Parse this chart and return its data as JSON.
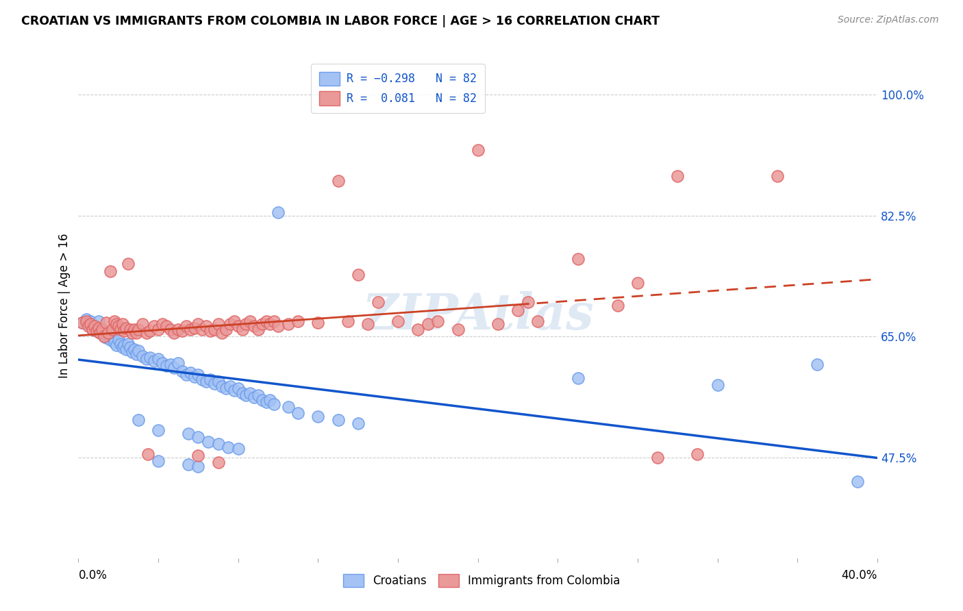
{
  "title": "CROATIAN VS IMMIGRANTS FROM COLOMBIA IN LABOR FORCE | AGE > 16 CORRELATION CHART",
  "source": "Source: ZipAtlas.com",
  "ylabel": "In Labor Force | Age > 16",
  "ytick_labels": [
    "47.5%",
    "65.0%",
    "82.5%",
    "100.0%"
  ],
  "ytick_values": [
    0.475,
    0.65,
    0.825,
    1.0
  ],
  "xmin": 0.0,
  "xmax": 0.4,
  "ymin": 0.33,
  "ymax": 1.06,
  "blue_color": "#a4c2f4",
  "pink_color": "#ea9999",
  "blue_edge_color": "#6d9eeb",
  "pink_edge_color": "#e06666",
  "blue_line_color": "#1155cc",
  "pink_line_color": "#cc4125",
  "watermark": "ZIPAtlas",
  "blue_scatter": [
    [
      0.002,
      0.67
    ],
    [
      0.004,
      0.675
    ],
    [
      0.005,
      0.668
    ],
    [
      0.006,
      0.672
    ],
    [
      0.007,
      0.66
    ],
    [
      0.008,
      0.665
    ],
    [
      0.009,
      0.658
    ],
    [
      0.01,
      0.672
    ],
    [
      0.011,
      0.655
    ],
    [
      0.012,
      0.66
    ],
    [
      0.013,
      0.65
    ],
    [
      0.014,
      0.648
    ],
    [
      0.015,
      0.655
    ],
    [
      0.016,
      0.645
    ],
    [
      0.017,
      0.648
    ],
    [
      0.018,
      0.642
    ],
    [
      0.019,
      0.638
    ],
    [
      0.02,
      0.645
    ],
    [
      0.021,
      0.64
    ],
    [
      0.022,
      0.635
    ],
    [
      0.023,
      0.638
    ],
    [
      0.024,
      0.632
    ],
    [
      0.025,
      0.64
    ],
    [
      0.026,
      0.635
    ],
    [
      0.027,
      0.628
    ],
    [
      0.028,
      0.632
    ],
    [
      0.029,
      0.625
    ],
    [
      0.03,
      0.63
    ],
    [
      0.032,
      0.622
    ],
    [
      0.034,
      0.618
    ],
    [
      0.036,
      0.62
    ],
    [
      0.038,
      0.615
    ],
    [
      0.04,
      0.618
    ],
    [
      0.042,
      0.612
    ],
    [
      0.044,
      0.608
    ],
    [
      0.046,
      0.61
    ],
    [
      0.048,
      0.605
    ],
    [
      0.05,
      0.612
    ],
    [
      0.052,
      0.6
    ],
    [
      0.054,
      0.595
    ],
    [
      0.056,
      0.598
    ],
    [
      0.058,
      0.592
    ],
    [
      0.06,
      0.595
    ],
    [
      0.062,
      0.588
    ],
    [
      0.064,
      0.585
    ],
    [
      0.066,
      0.588
    ],
    [
      0.068,
      0.582
    ],
    [
      0.07,
      0.585
    ],
    [
      0.072,
      0.578
    ],
    [
      0.074,
      0.575
    ],
    [
      0.076,
      0.578
    ],
    [
      0.078,
      0.572
    ],
    [
      0.08,
      0.575
    ],
    [
      0.082,
      0.568
    ],
    [
      0.084,
      0.565
    ],
    [
      0.086,
      0.568
    ],
    [
      0.088,
      0.562
    ],
    [
      0.09,
      0.565
    ],
    [
      0.092,
      0.558
    ],
    [
      0.094,
      0.555
    ],
    [
      0.096,
      0.558
    ],
    [
      0.098,
      0.552
    ],
    [
      0.1,
      0.83
    ],
    [
      0.105,
      0.548
    ],
    [
      0.03,
      0.53
    ],
    [
      0.04,
      0.515
    ],
    [
      0.055,
      0.51
    ],
    [
      0.06,
      0.505
    ],
    [
      0.065,
      0.498
    ],
    [
      0.07,
      0.495
    ],
    [
      0.075,
      0.49
    ],
    [
      0.08,
      0.488
    ],
    [
      0.04,
      0.47
    ],
    [
      0.055,
      0.465
    ],
    [
      0.06,
      0.462
    ],
    [
      0.11,
      0.54
    ],
    [
      0.12,
      0.535
    ],
    [
      0.13,
      0.53
    ],
    [
      0.14,
      0.525
    ],
    [
      0.25,
      0.59
    ],
    [
      0.32,
      0.58
    ],
    [
      0.37,
      0.61
    ],
    [
      0.39,
      0.44
    ]
  ],
  "pink_scatter": [
    [
      0.002,
      0.67
    ],
    [
      0.004,
      0.672
    ],
    [
      0.005,
      0.665
    ],
    [
      0.006,
      0.668
    ],
    [
      0.007,
      0.66
    ],
    [
      0.008,
      0.665
    ],
    [
      0.009,
      0.658
    ],
    [
      0.01,
      0.662
    ],
    [
      0.011,
      0.655
    ],
    [
      0.012,
      0.66
    ],
    [
      0.013,
      0.65
    ],
    [
      0.014,
      0.67
    ],
    [
      0.015,
      0.655
    ],
    [
      0.016,
      0.745
    ],
    [
      0.017,
      0.66
    ],
    [
      0.018,
      0.672
    ],
    [
      0.019,
      0.668
    ],
    [
      0.02,
      0.665
    ],
    [
      0.021,
      0.66
    ],
    [
      0.022,
      0.668
    ],
    [
      0.023,
      0.658
    ],
    [
      0.024,
      0.662
    ],
    [
      0.025,
      0.755
    ],
    [
      0.026,
      0.66
    ],
    [
      0.027,
      0.655
    ],
    [
      0.028,
      0.66
    ],
    [
      0.029,
      0.655
    ],
    [
      0.03,
      0.66
    ],
    [
      0.032,
      0.668
    ],
    [
      0.034,
      0.655
    ],
    [
      0.036,
      0.658
    ],
    [
      0.038,
      0.665
    ],
    [
      0.04,
      0.66
    ],
    [
      0.042,
      0.668
    ],
    [
      0.044,
      0.665
    ],
    [
      0.046,
      0.66
    ],
    [
      0.048,
      0.655
    ],
    [
      0.05,
      0.66
    ],
    [
      0.052,
      0.658
    ],
    [
      0.054,
      0.665
    ],
    [
      0.056,
      0.66
    ],
    [
      0.058,
      0.662
    ],
    [
      0.06,
      0.668
    ],
    [
      0.062,
      0.66
    ],
    [
      0.064,
      0.665
    ],
    [
      0.066,
      0.658
    ],
    [
      0.068,
      0.66
    ],
    [
      0.07,
      0.668
    ],
    [
      0.072,
      0.655
    ],
    [
      0.074,
      0.66
    ],
    [
      0.076,
      0.668
    ],
    [
      0.078,
      0.672
    ],
    [
      0.08,
      0.665
    ],
    [
      0.082,
      0.66
    ],
    [
      0.084,
      0.668
    ],
    [
      0.086,
      0.672
    ],
    [
      0.088,
      0.665
    ],
    [
      0.09,
      0.66
    ],
    [
      0.092,
      0.668
    ],
    [
      0.094,
      0.672
    ],
    [
      0.096,
      0.668
    ],
    [
      0.098,
      0.672
    ],
    [
      0.1,
      0.665
    ],
    [
      0.105,
      0.668
    ],
    [
      0.11,
      0.672
    ],
    [
      0.12,
      0.67
    ],
    [
      0.13,
      0.875
    ],
    [
      0.135,
      0.672
    ],
    [
      0.14,
      0.74
    ],
    [
      0.145,
      0.668
    ],
    [
      0.15,
      0.7
    ],
    [
      0.16,
      0.672
    ],
    [
      0.17,
      0.66
    ],
    [
      0.175,
      0.668
    ],
    [
      0.18,
      0.672
    ],
    [
      0.19,
      0.66
    ],
    [
      0.2,
      0.92
    ],
    [
      0.21,
      0.668
    ],
    [
      0.22,
      0.688
    ],
    [
      0.225,
      0.7
    ],
    [
      0.23,
      0.672
    ],
    [
      0.25,
      0.762
    ],
    [
      0.27,
      0.695
    ],
    [
      0.28,
      0.728
    ],
    [
      0.29,
      0.475
    ],
    [
      0.3,
      0.882
    ],
    [
      0.31,
      0.48
    ],
    [
      0.35,
      0.882
    ],
    [
      0.035,
      0.48
    ],
    [
      0.06,
      0.478
    ],
    [
      0.07,
      0.468
    ]
  ]
}
